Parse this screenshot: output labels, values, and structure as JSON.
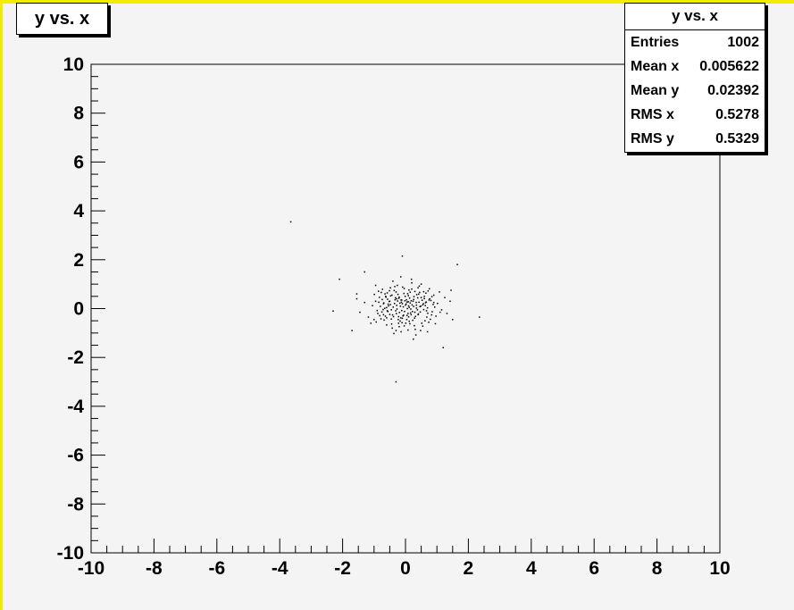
{
  "title": "y vs. x",
  "stats": {
    "title": "y vs. x",
    "rows": [
      {
        "label": "Entries",
        "value": "1002"
      },
      {
        "label": "Mean x",
        "value": "0.005622"
      },
      {
        "label": "Mean y",
        "value": "0.02392"
      },
      {
        "label": "RMS x",
        "value": "0.5278"
      },
      {
        "label": "RMS y",
        "value": "0.5329"
      }
    ]
  },
  "colors": {
    "frame_border": "#f2ec00",
    "pad_background": "#f4f4f4",
    "marker": "#000000"
  },
  "chart_data": {
    "type": "scatter",
    "title": "y vs. x",
    "xlabel": "",
    "ylabel": "",
    "xlim": [
      -10,
      10
    ],
    "ylim": [
      -10,
      10
    ],
    "x_ticks": [
      "-10",
      "-8",
      "-6",
      "-4",
      "-2",
      "0",
      "2",
      "4",
      "6",
      "8",
      "10"
    ],
    "y_ticks": [
      "-10",
      "-8",
      "-6",
      "-4",
      "-2",
      "0",
      "2",
      "4",
      "6",
      "8",
      "10"
    ],
    "grid": false,
    "legend": "none",
    "marker": "dot",
    "entries": 1002,
    "mean_x": 0.005622,
    "mean_y": 0.02392,
    "rms_x": 0.5278,
    "rms_y": 0.5329,
    "outliers": [
      {
        "x": -3.65,
        "y": 3.55
      },
      {
        "x": -2.1,
        "y": 1.2
      },
      {
        "x": -2.3,
        "y": -0.1
      },
      {
        "x": -1.3,
        "y": 1.5
      },
      {
        "x": -0.3,
        "y": -3.0
      },
      {
        "x": -0.1,
        "y": 2.15
      },
      {
        "x": 1.65,
        "y": 1.8
      },
      {
        "x": 2.35,
        "y": -0.35
      },
      {
        "x": 1.2,
        "y": -1.6
      },
      {
        "x": -1.55,
        "y": 0.6
      },
      {
        "x": 1.45,
        "y": 0.75
      },
      {
        "x": -1.7,
        "y": -0.9
      }
    ],
    "points": [
      [
        -0.12,
        0.35
      ],
      [
        0.41,
        -0.22
      ],
      [
        -0.55,
        0.18
      ],
      [
        0.07,
        0.61
      ],
      [
        0.23,
        -0.48
      ],
      [
        -0.31,
        -0.09
      ],
      [
        0.66,
        0.27
      ],
      [
        -0.78,
        -0.42
      ],
      [
        0.12,
        0.05
      ],
      [
        -0.04,
        -0.71
      ],
      [
        0.39,
        0.44
      ],
      [
        -0.47,
        0.52
      ],
      [
        0.85,
        -0.13
      ],
      [
        -0.22,
        -0.33
      ],
      [
        0.02,
        0.19
      ],
      [
        0.58,
        0.69
      ],
      [
        -0.66,
        0.01
      ],
      [
        0.31,
        -0.85
      ],
      [
        -0.09,
        0.88
      ],
      [
        0.17,
        -0.02
      ],
      [
        -0.95,
        0.3
      ],
      [
        0.74,
        -0.56
      ],
      [
        -0.36,
        0.74
      ],
      [
        0.49,
        0.1
      ],
      [
        -0.17,
        -0.51
      ],
      [
        1.02,
        0.21
      ],
      [
        -0.6,
        -0.67
      ],
      [
        0.26,
        0.37
      ],
      [
        -0.83,
        0.46
      ],
      [
        0.05,
        -0.28
      ],
      [
        0.44,
        0.92
      ],
      [
        -0.28,
        0.13
      ],
      [
        0.9,
        0.55
      ],
      [
        -0.5,
        -0.24
      ],
      [
        0.14,
        -0.62
      ],
      [
        -0.01,
        0.5
      ],
      [
        0.68,
        -0.35
      ],
      [
        -0.73,
        0.79
      ],
      [
        0.35,
        0.02
      ],
      [
        -0.14,
        -0.95
      ],
      [
        1.15,
        -0.05
      ],
      [
        -1.05,
        0.12
      ],
      [
        0.2,
        1.05
      ],
      [
        -0.42,
        -0.8
      ],
      [
        0.55,
        -0.72
      ],
      [
        -0.24,
        0.58
      ],
      [
        0.81,
        0.33
      ],
      [
        -0.88,
        -0.2
      ],
      [
        0.09,
        0.28
      ],
      [
        -0.33,
        0.36
      ],
      [
        0.63,
        0.12
      ],
      [
        -0.58,
        0.64
      ],
      [
        0.29,
        -0.39
      ],
      [
        -0.07,
        0.07
      ],
      [
        0.47,
        -0.14
      ],
      [
        -0.69,
        0.23
      ],
      [
        0.11,
        0.76
      ],
      [
        -0.19,
        -0.16
      ],
      [
        0.76,
        0.81
      ],
      [
        -0.93,
        -0.55
      ],
      [
        0.36,
        0.57
      ],
      [
        -0.45,
        -0.43
      ],
      [
        0.97,
        -0.31
      ],
      [
        -0.26,
        0.95
      ],
      [
        0.04,
        -0.45
      ],
      [
        -0.52,
        0.29
      ],
      [
        0.6,
        0.41
      ],
      [
        -0.11,
        -0.58
      ],
      [
        0.21,
        0.15
      ],
      [
        -0.71,
        -0.04
      ],
      [
        1.25,
        0.45
      ],
      [
        -1.18,
        -0.35
      ],
      [
        0.33,
        -1.08
      ],
      [
        -0.4,
        1.12
      ],
      [
        0.7,
        0.03
      ],
      [
        -0.02,
        0.32
      ],
      [
        0.52,
        -0.6
      ],
      [
        -0.62,
        0.47
      ],
      [
        0.16,
        -0.18
      ],
      [
        -0.3,
        0.68
      ],
      [
        0.88,
        0.17
      ],
      [
        -0.8,
        0.09
      ],
      [
        0.27,
        0.49
      ],
      [
        -0.15,
        -0.38
      ],
      [
        0.43,
        0.26
      ],
      [
        -0.56,
        -0.12
      ],
      [
        0.08,
        -0.88
      ],
      [
        -0.35,
        0.21
      ],
      [
        0.65,
        0.63
      ],
      [
        -0.99,
        0.58
      ],
      [
        0.18,
        -0.25
      ],
      [
        -0.21,
        0.42
      ],
      [
        0.79,
        -0.44
      ],
      [
        -0.48,
        0.85
      ],
      [
        0.38,
        -0.05
      ],
      [
        -0.06,
        -0.27
      ],
      [
        1.08,
        0.68
      ],
      [
        -0.74,
        0.37
      ],
      [
        0.24,
        0.3
      ],
      [
        -0.44,
        -0.63
      ],
      [
        0.57,
        0.2
      ],
      [
        -0.27,
        -0.02
      ],
      [
        0.13,
        0.43
      ],
      [
        -0.64,
        -0.31
      ],
      [
        0.93,
        0.06
      ],
      [
        -0.18,
        0.22
      ],
      [
        0.48,
        -0.9
      ],
      [
        -0.9,
        -0.08
      ],
      [
        0.3,
        0.7
      ],
      [
        -0.03,
        -0.12
      ],
      [
        0.71,
        -0.19
      ],
      [
        -0.54,
        0.11
      ],
      [
        0.19,
        1.2
      ],
      [
        -0.37,
        -1.02
      ],
      [
        0.84,
        0.49
      ],
      [
        -0.77,
        0.66
      ],
      [
        0.06,
        0.0
      ],
      [
        -0.25,
        0.31
      ],
      [
        0.53,
        0.34
      ],
      [
        -0.1,
        -0.4
      ],
      [
        1.32,
        -0.2
      ],
      [
        -1.3,
        0.25
      ],
      [
        0.42,
        0.59
      ],
      [
        -0.6,
        0.04
      ],
      [
        0.1,
        -0.34
      ],
      [
        -0.43,
        0.55
      ],
      [
        0.64,
        0.24
      ],
      [
        -0.16,
        0.1
      ],
      [
        0.28,
        -0.7
      ],
      [
        -0.82,
        -0.29
      ],
      [
        0.35,
        0.14
      ],
      [
        -0.05,
        0.62
      ],
      [
        0.77,
        0.4
      ],
      [
        -0.68,
        -0.47
      ],
      [
        0.15,
        0.23
      ],
      [
        -0.29,
        -0.21
      ],
      [
        0.46,
        0.08
      ],
      [
        -0.51,
        0.73
      ],
      [
        0.01,
        -0.6
      ],
      [
        -0.13,
        0.26
      ],
      [
        0.95,
        -0.62
      ],
      [
        -1.1,
        -0.6
      ],
      [
        0.5,
        1.0
      ],
      [
        -0.34,
        0.9
      ],
      [
        0.22,
        -0.12
      ],
      [
        -0.57,
        0.38
      ],
      [
        0.67,
        -0.09
      ],
      [
        -0.2,
        -0.74
      ],
      [
        0.09,
        0.53
      ],
      [
        -0.39,
        0.06
      ],
      [
        1.42,
        0.3
      ],
      [
        -1.45,
        -0.15
      ],
      [
        0.25,
        -1.25
      ],
      [
        -0.15,
        1.3
      ],
      [
        0.6,
        0.5
      ],
      [
        -0.7,
        0.2
      ],
      [
        0.18,
        0.32
      ],
      [
        -0.08,
        -0.3
      ],
      [
        0.4,
        -0.25
      ],
      [
        -0.48,
        0.16
      ],
      [
        0.72,
        0.72
      ],
      [
        -0.86,
        0.71
      ],
      [
        0.03,
        0.36
      ],
      [
        -0.23,
        -0.45
      ],
      [
        0.55,
        0.15
      ],
      [
        -0.41,
        -0.26
      ],
      [
        0.12,
        -0.52
      ],
      [
        -0.63,
        0.5
      ],
      [
        0.83,
        -0.26
      ],
      [
        -0.32,
        0.44
      ],
      [
        0.26,
        0.09
      ],
      [
        -0.12,
        -0.08
      ],
      [
        0.45,
        0.66
      ],
      [
        -0.58,
        -0.09
      ],
      [
        0.0,
        0.14
      ],
      [
        -0.2,
        0.47
      ],
      [
        0.62,
        -0.5
      ],
      [
        -0.75,
        -0.14
      ],
      [
        0.34,
        0.25
      ],
      [
        -0.04,
        0.82
      ],
      [
        1.5,
        -0.45
      ],
      [
        -1.55,
        0.4
      ],
      [
        0.7,
        -0.95
      ],
      [
        -0.95,
        0.95
      ],
      [
        0.2,
        0.8
      ],
      [
        -0.45,
        -0.05
      ],
      [
        0.08,
        -0.2
      ],
      [
        -0.28,
        0.4
      ],
      [
        0.5,
        0.45
      ],
      [
        -0.6,
        -0.38
      ],
      [
        0.9,
        0.25
      ],
      [
        -0.85,
        0.26
      ],
      [
        0.32,
        -0.32
      ],
      [
        -0.1,
        0.2
      ],
      [
        0.15,
        0.67
      ],
      [
        -0.38,
        -0.33
      ],
      [
        0.58,
        -0.04
      ],
      [
        -0.65,
        0.6
      ],
      [
        0.05,
        0.27
      ],
      [
        -0.22,
        -0.6
      ],
      [
        1.1,
        -0.15
      ],
      [
        -1.0,
        -0.45
      ],
      [
        0.4,
        0.85
      ],
      [
        -0.3,
        -0.9
      ],
      [
        0.75,
        0.35
      ],
      [
        -0.5,
        0.3
      ],
      [
        0.1,
        0.11
      ],
      [
        -0.14,
        0.35
      ],
      [
        0.3,
        -0.15
      ],
      [
        -0.7,
        -0.25
      ]
    ]
  }
}
